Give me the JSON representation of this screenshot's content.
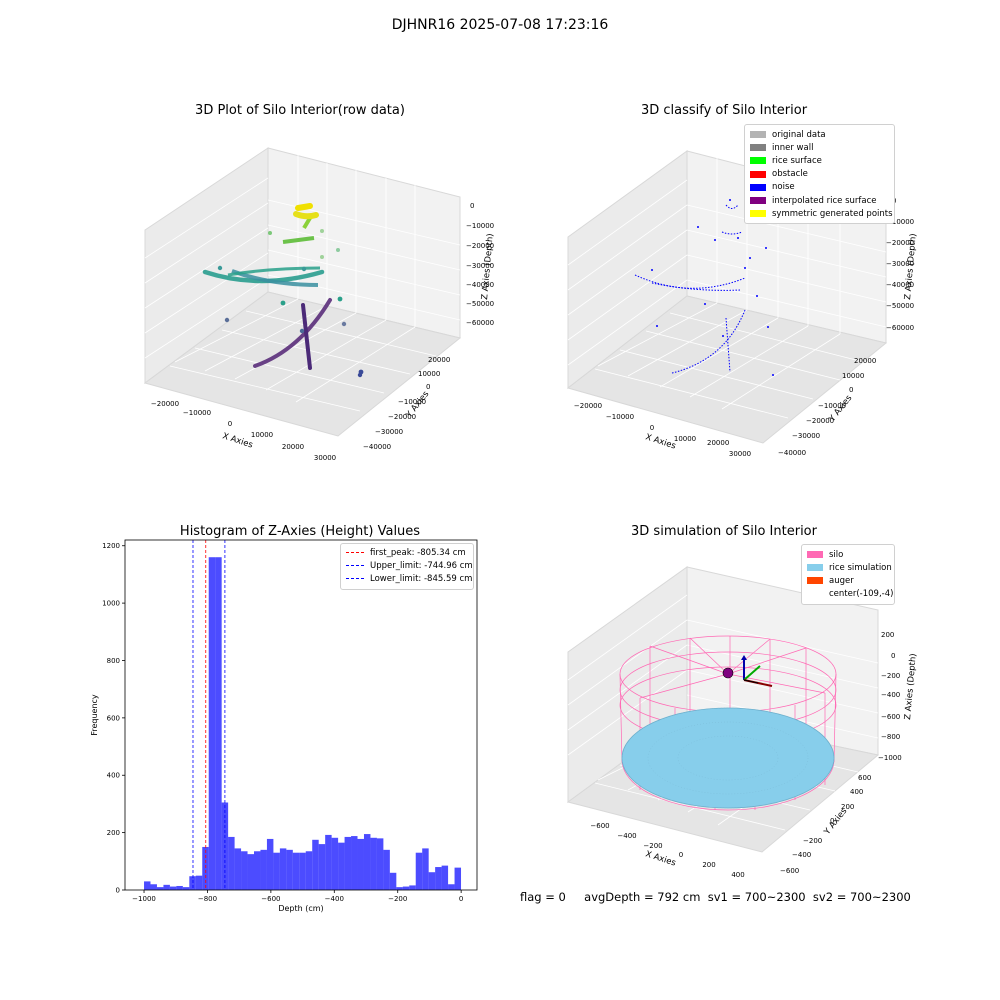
{
  "suptitle": "DJHNR16 2025-07-08 17:23:16",
  "panels": {
    "raw": {
      "title": "3D Plot of Silo Interior(row data)",
      "xlabel": "X Axies",
      "ylabel": "Y Axies",
      "zlabel": "Z Axies (Depth)",
      "xticks": [
        "−20000",
        "−10000",
        "0",
        "10000",
        "20000",
        "30000"
      ],
      "yticks": [
        "−40000",
        "−30000",
        "−20000",
        "−10000",
        "0",
        "10000",
        "20000"
      ],
      "zticks": [
        "0",
        "−10000",
        "−20000",
        "−30000",
        "−40000",
        "−50000",
        "−60000"
      ]
    },
    "classify": {
      "title": "3D classify of Silo Interior",
      "xlabel": "X Axies",
      "ylabel": "Y Axies",
      "zlabel": "Z Axies (Depth)",
      "xticks": [
        "−20000",
        "−10000",
        "0",
        "10000",
        "20000",
        "30000"
      ],
      "yticks": [
        "−40000",
        "−30000",
        "−20000",
        "−10000",
        "0",
        "10000",
        "20000"
      ],
      "zticks": [
        "0",
        "−10000",
        "−20000",
        "−30000",
        "−40000",
        "−50000",
        "−60000"
      ],
      "legend": [
        {
          "label": "original data",
          "color": "#b3b3b3"
        },
        {
          "label": "inner wall",
          "color": "#808080"
        },
        {
          "label": "rice surface",
          "color": "#00ff00"
        },
        {
          "label": "obstacle",
          "color": "#ff0000"
        },
        {
          "label": "noise",
          "color": "#0000ff"
        },
        {
          "label": "interpolated rice surface",
          "color": "#800080"
        },
        {
          "label": "symmetric generated points",
          "color": "#ffff00"
        }
      ]
    },
    "simulation": {
      "title": "3D simulation of Silo Interior",
      "xlabel": "X Axies",
      "ylabel": "Y Axies",
      "zlabel": "Z Axies (Depth)",
      "xticks": [
        "−600",
        "−400",
        "−200",
        "0",
        "200",
        "400"
      ],
      "yticks": [
        "−600",
        "−400",
        "−200",
        "0",
        "200",
        "400",
        "600"
      ],
      "zticks": [
        "200",
        "0",
        "−200",
        "−400",
        "−600",
        "−800",
        "−1000"
      ],
      "legend": [
        {
          "label": "silo",
          "color": "#ff69b4"
        },
        {
          "label": "rice simulation",
          "color": "#87ceeb"
        },
        {
          "label": "auger",
          "color": "#ff4500"
        },
        {
          "label": "center(-109,-4)",
          "color": ""
        }
      ]
    }
  },
  "chart_data": [
    {
      "type": "bar",
      "title": "Histogram of Z-Axies (Height) Values",
      "xlabel": "Depth (cm)",
      "ylabel": "Frequency",
      "xlim": [
        -1060,
        50
      ],
      "ylim": [
        0,
        1220
      ],
      "xticks": [
        -1000,
        -800,
        -600,
        -400,
        -200,
        0
      ],
      "yticks": [
        0,
        200,
        400,
        600,
        800,
        1000,
        1200
      ],
      "bar_color": "#0000ff",
      "bin_start": -1000,
      "bin_width": 20.4,
      "values": [
        30,
        20,
        10,
        18,
        12,
        14,
        10,
        48,
        50,
        150,
        1160,
        1160,
        305,
        185,
        145,
        135,
        125,
        135,
        140,
        178,
        130,
        145,
        140,
        130,
        130,
        135,
        175,
        160,
        192,
        182,
        165,
        185,
        188,
        178,
        195,
        182,
        180,
        140,
        60,
        10,
        12,
        16,
        130,
        145,
        62,
        80,
        85,
        20,
        78
      ],
      "vlines": [
        {
          "label": "first_peak: -805.34 cm",
          "x": -805.34,
          "color": "#ff0000"
        },
        {
          "label": "Upper_limit: -744.96 cm",
          "x": -744.96,
          "color": "#0000ff"
        },
        {
          "label": "Lower_limit: -845.59 cm",
          "x": -845.59,
          "color": "#0000ff"
        }
      ],
      "legend_position": "top-right"
    }
  ],
  "footer": {
    "flag": "flag = 0",
    "stats": "avgDepth = 792 cm  sv1 = 700~2300  sv2 = 700~2300"
  }
}
